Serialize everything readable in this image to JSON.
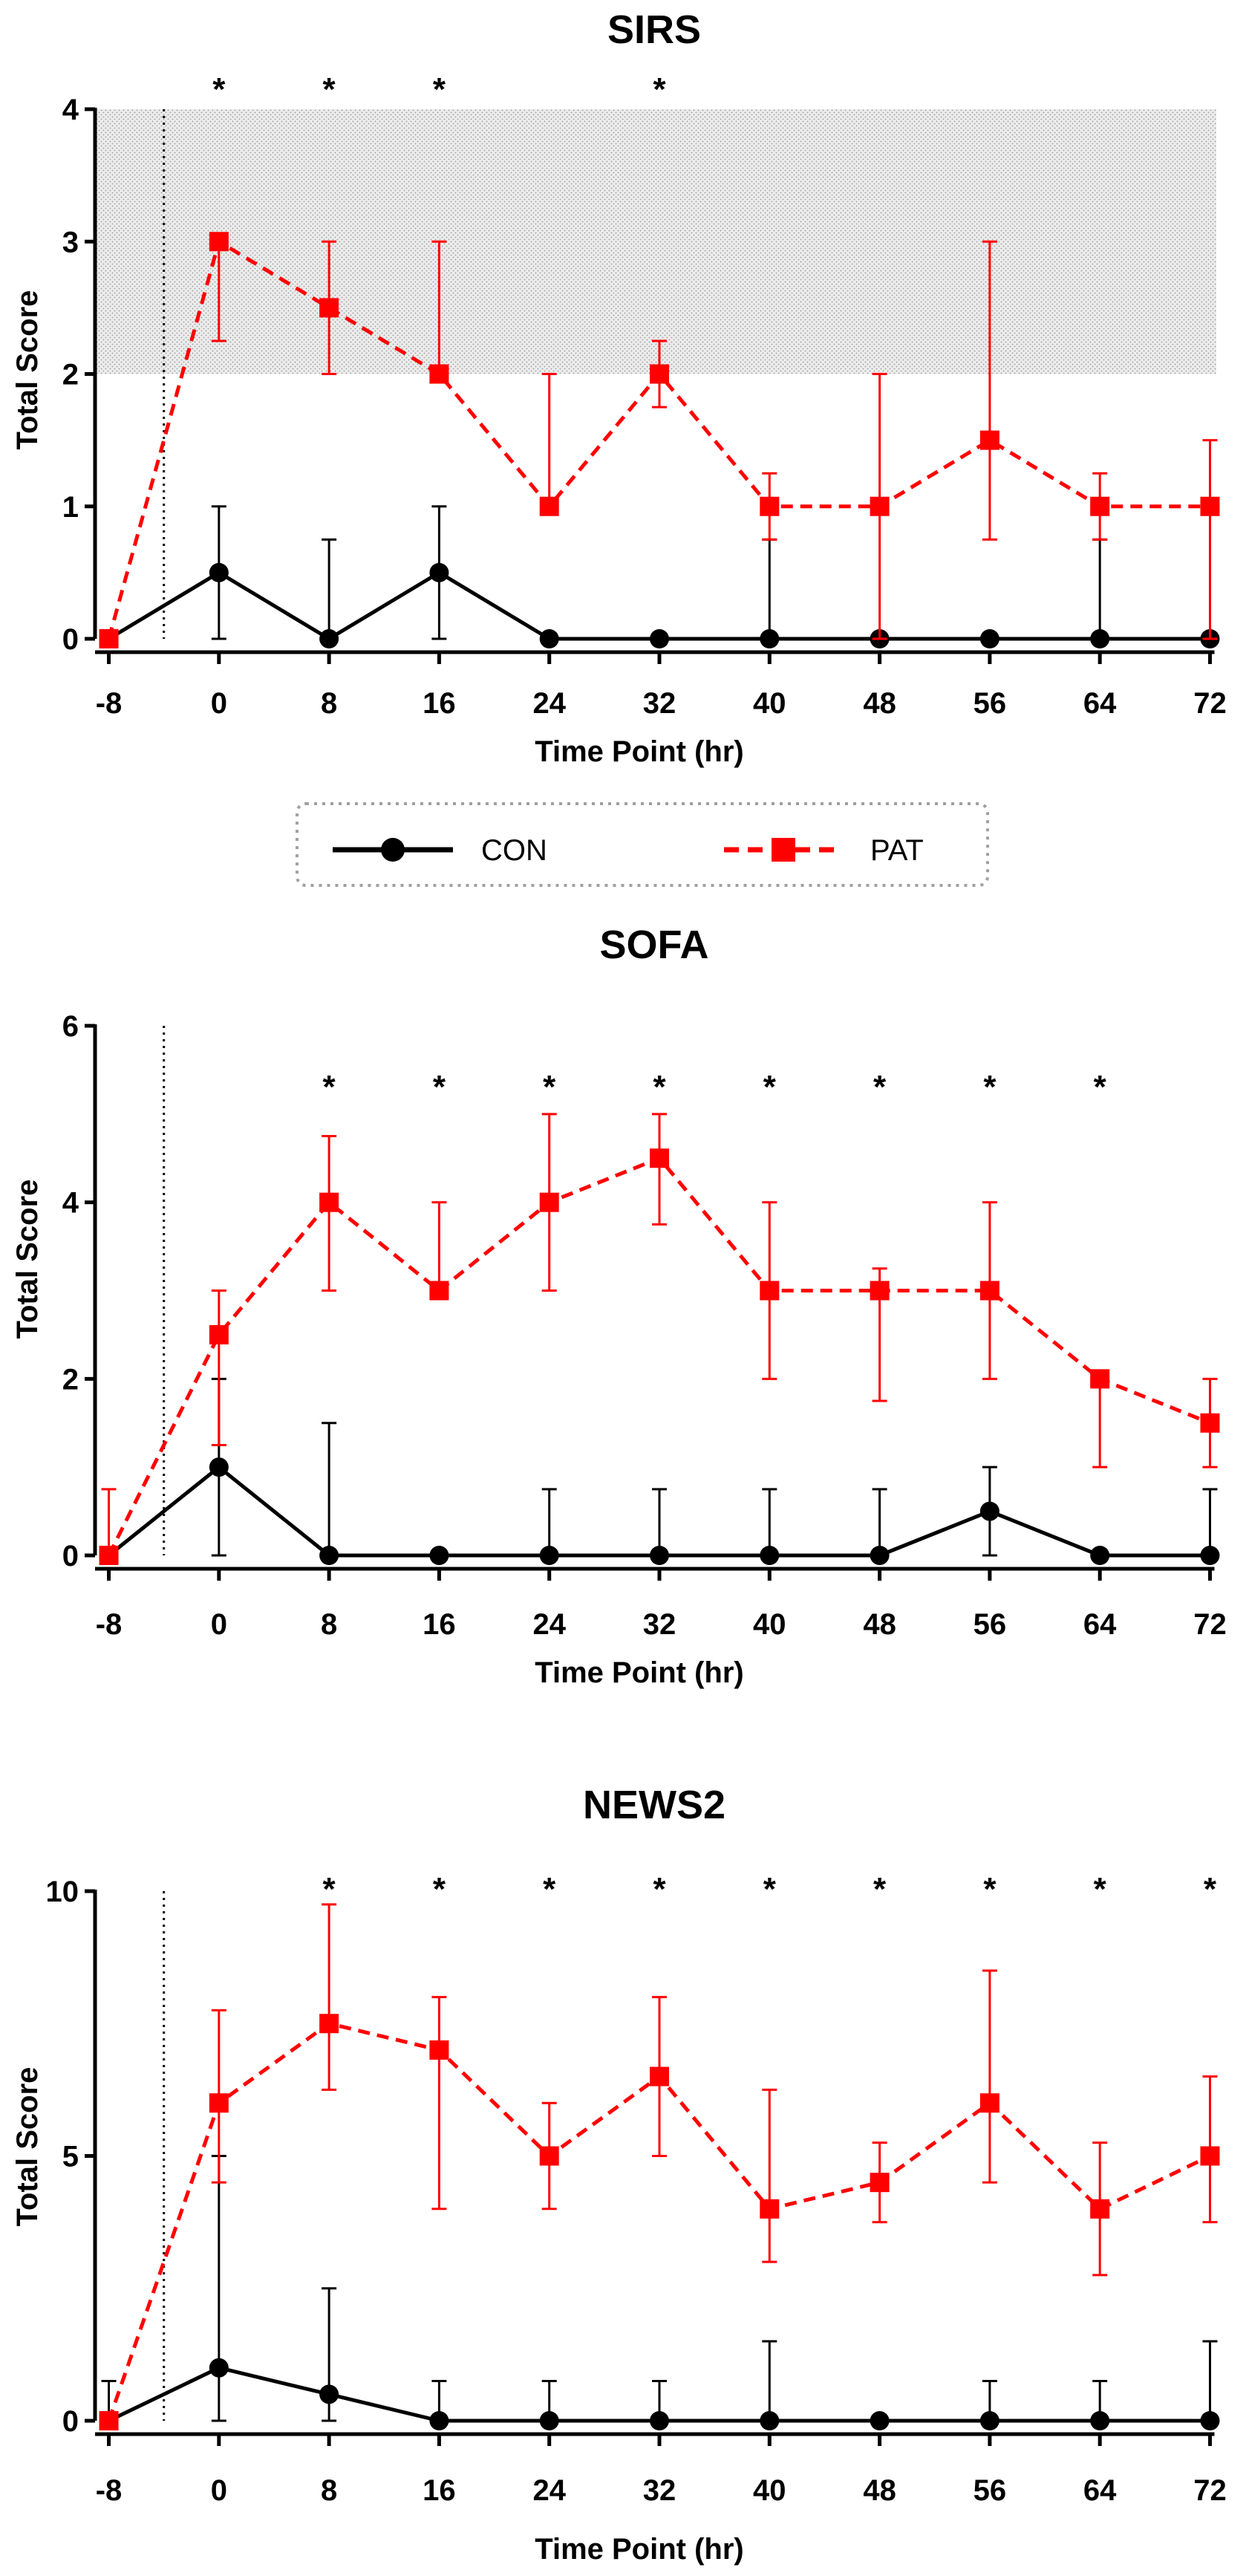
{
  "x_axis": {
    "label": "Time Point (hr)",
    "ticks": [
      -8,
      0,
      8,
      16,
      24,
      32,
      40,
      48,
      56,
      64,
      72
    ],
    "range": [
      -9,
      73
    ],
    "admission_marker": -4
  },
  "legend": {
    "items": [
      {
        "name": "CON",
        "color": "#000000",
        "marker": "circle",
        "dash": "solid"
      },
      {
        "name": "PAT",
        "color": "#ff0000",
        "marker": "square",
        "dash": "dashed"
      }
    ]
  },
  "chart_data": [
    {
      "type": "line",
      "title": "SIRS",
      "xlabel": "Time Point (hr)",
      "ylabel": "Total Score",
      "ylim": [
        0,
        4
      ],
      "yticks": [
        0,
        1,
        2,
        3,
        4
      ],
      "x": [
        -8,
        0,
        8,
        16,
        24,
        32,
        40,
        48,
        56,
        64,
        72
      ],
      "shaded_band": [
        2,
        4
      ],
      "significant_x": [
        0,
        8,
        16,
        32
      ],
      "series": [
        {
          "name": "CON",
          "values": [
            0,
            0.5,
            0,
            0.5,
            0,
            0,
            0,
            0,
            0,
            0,
            0
          ],
          "err_low": [
            0,
            0,
            0,
            0,
            0,
            0,
            0,
            0,
            0,
            0,
            0
          ],
          "err_high": [
            0,
            1,
            0.75,
            1,
            0,
            0,
            0.75,
            0,
            0,
            0.75,
            0
          ]
        },
        {
          "name": "PAT",
          "values": [
            0,
            3,
            2.5,
            2,
            1,
            2,
            1,
            1,
            1.5,
            1,
            1
          ],
          "err_low": [
            0,
            2.25,
            2,
            2,
            1,
            1.75,
            0.75,
            0,
            0.75,
            0.75,
            0
          ],
          "err_high": [
            0,
            3,
            3,
            3,
            2,
            2.25,
            1.25,
            2,
            3,
            1.25,
            1.5
          ]
        }
      ]
    },
    {
      "type": "line",
      "title": "SOFA",
      "xlabel": "Time Point (hr)",
      "ylabel": "Total Score",
      "ylim": [
        0,
        6
      ],
      "yticks": [
        0,
        2,
        4,
        6
      ],
      "x": [
        -8,
        0,
        8,
        16,
        24,
        32,
        40,
        48,
        56,
        64,
        72
      ],
      "significant_x": [
        8,
        16,
        24,
        32,
        40,
        48,
        56,
        64
      ],
      "series": [
        {
          "name": "CON",
          "values": [
            0,
            1,
            0,
            0,
            0,
            0,
            0,
            0,
            0.5,
            0,
            0
          ],
          "err_low": [
            0,
            0,
            0,
            0,
            0,
            0,
            0,
            0,
            0,
            0,
            0
          ],
          "err_high": [
            0,
            2,
            1.5,
            0,
            0.75,
            0.75,
            0.75,
            0.75,
            1,
            0,
            0.75
          ]
        },
        {
          "name": "PAT",
          "values": [
            0,
            2.5,
            4,
            3,
            4,
            4.5,
            3,
            3,
            3,
            2,
            1.5
          ],
          "err_low": [
            0,
            1.25,
            3,
            3,
            3,
            3.75,
            2,
            1.75,
            2,
            1,
            1
          ],
          "err_high": [
            0.75,
            3,
            4.75,
            4,
            5,
            5,
            4,
            3.25,
            4,
            2,
            2
          ]
        }
      ]
    },
    {
      "type": "line",
      "title": "NEWS2",
      "xlabel": "Time Point (hr)",
      "ylabel": "Total Score",
      "ylim": [
        0,
        10
      ],
      "yticks": [
        0,
        5,
        10
      ],
      "x": [
        -8,
        0,
        8,
        16,
        24,
        32,
        40,
        48,
        56,
        64,
        72
      ],
      "significant_x": [
        8,
        16,
        24,
        32,
        40,
        48,
        56,
        64,
        72
      ],
      "series": [
        {
          "name": "CON",
          "values": [
            0,
            1,
            0.5,
            0,
            0,
            0,
            0,
            0,
            0,
            0,
            0
          ],
          "err_low": [
            0,
            0,
            0,
            0,
            0,
            0,
            0,
            0,
            0,
            0,
            0
          ],
          "err_high": [
            0.75,
            5,
            2.5,
            0.75,
            0.75,
            0.75,
            1.5,
            0,
            0.75,
            0.75,
            1.5
          ]
        },
        {
          "name": "PAT",
          "values": [
            0,
            6,
            7.5,
            7,
            5,
            6.5,
            4,
            4.5,
            6,
            4,
            5
          ],
          "err_low": [
            0,
            4.5,
            6.25,
            4,
            4,
            5,
            3,
            3.75,
            4.5,
            2.75,
            3.75
          ],
          "err_high": [
            0,
            7.75,
            9.75,
            8,
            6,
            8,
            6.25,
            5.25,
            8.5,
            5.25,
            6.5
          ]
        }
      ]
    }
  ]
}
